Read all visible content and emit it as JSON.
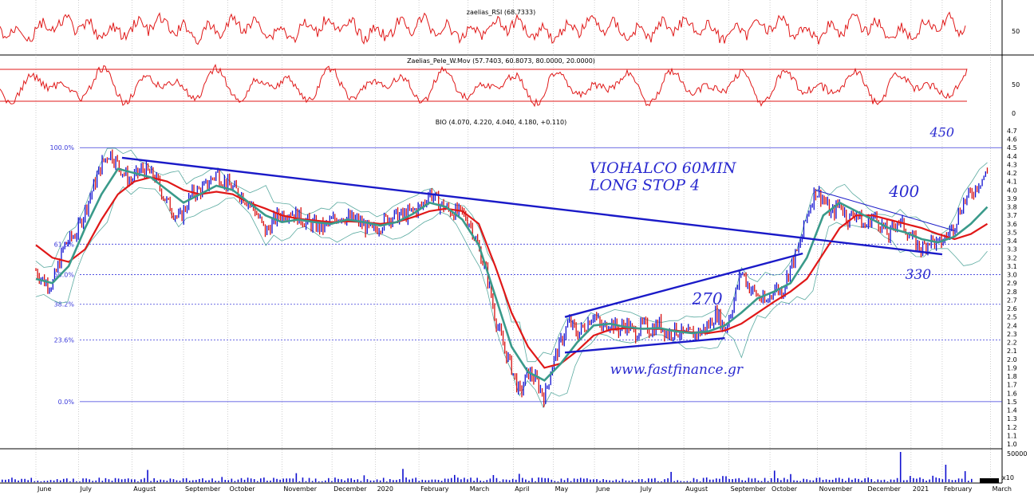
{
  "chart_data": {
    "type": "line",
    "ticker": "BIO",
    "price_header": "BIO (4.070, 4.220, 4.040, 4.180, +0.110)",
    "y_axis": {
      "min": 1.0,
      "max": 4.7,
      "ticks": [
        "4.7",
        "4.6",
        "4.5",
        "4.4",
        "4.3",
        "4.2",
        "4.1",
        "4.0",
        "3.9",
        "3.8",
        "3.7",
        "3.6",
        "3.5",
        "3.4",
        "3.3",
        "3.2",
        "3.1",
        "3.0",
        "2.9",
        "2.8",
        "2.7",
        "2.6",
        "2.5",
        "2.4",
        "2.3",
        "2.2",
        "2.1",
        "2.0",
        "1.9",
        "1.8",
        "1.7",
        "1.6",
        "1.5",
        "1.4",
        "1.3",
        "1.2",
        "1.1",
        "1.0"
      ]
    },
    "x_axis": {
      "labels": [
        "June",
        "July",
        "August",
        "September",
        "October",
        "November",
        "December",
        "2020",
        "February",
        "March",
        "April",
        "May",
        "June",
        "July",
        "August",
        "September",
        "October",
        "November",
        "December",
        "2021",
        "February",
        "March"
      ],
      "label_pos": [
        0.0,
        0.052,
        0.117,
        0.18,
        0.234,
        0.3,
        0.361,
        0.414,
        0.467,
        0.527,
        0.582,
        0.631,
        0.681,
        0.735,
        0.79,
        0.845,
        0.895,
        0.953,
        1.012,
        1.067,
        1.105,
        1.164
      ]
    },
    "fib_levels": [
      {
        "label": "100.0%",
        "value": 4.5
      },
      {
        "label": "61.8%",
        "value": 3.36
      },
      {
        "label": "50.0%",
        "value": 3.0
      },
      {
        "label": "38.2%",
        "value": 2.65
      },
      {
        "label": "23.6%",
        "value": 2.23
      },
      {
        "label": "0.0%",
        "value": 1.5
      }
    ],
    "price_path": [
      [
        0.0,
        3.05
      ],
      [
        0.01,
        2.92
      ],
      [
        0.02,
        2.88
      ],
      [
        0.035,
        3.35
      ],
      [
        0.05,
        3.5
      ],
      [
        0.065,
        3.9
      ],
      [
        0.08,
        4.3
      ],
      [
        0.09,
        4.45
      ],
      [
        0.1,
        4.3
      ],
      [
        0.115,
        4.1
      ],
      [
        0.13,
        4.25
      ],
      [
        0.145,
        4.15
      ],
      [
        0.16,
        3.85
      ],
      [
        0.175,
        3.65
      ],
      [
        0.19,
        3.95
      ],
      [
        0.205,
        4.02
      ],
      [
        0.22,
        4.2
      ],
      [
        0.235,
        4.05
      ],
      [
        0.25,
        3.95
      ],
      [
        0.265,
        3.8
      ],
      [
        0.28,
        3.5
      ],
      [
        0.295,
        3.7
      ],
      [
        0.31,
        3.75
      ],
      [
        0.33,
        3.62
      ],
      [
        0.35,
        3.55
      ],
      [
        0.37,
        3.7
      ],
      [
        0.39,
        3.65
      ],
      [
        0.41,
        3.5
      ],
      [
        0.43,
        3.68
      ],
      [
        0.45,
        3.7
      ],
      [
        0.47,
        3.8
      ],
      [
        0.48,
        3.98
      ],
      [
        0.49,
        3.85
      ],
      [
        0.505,
        3.75
      ],
      [
        0.52,
        3.72
      ],
      [
        0.53,
        3.6
      ],
      [
        0.54,
        3.3
      ],
      [
        0.55,
        3.0
      ],
      [
        0.56,
        2.5
      ],
      [
        0.57,
        2.15
      ],
      [
        0.58,
        1.9
      ],
      [
        0.59,
        1.58
      ],
      [
        0.6,
        1.85
      ],
      [
        0.61,
        1.75
      ],
      [
        0.62,
        1.55
      ],
      [
        0.63,
        1.95
      ],
      [
        0.64,
        2.2
      ],
      [
        0.65,
        2.45
      ],
      [
        0.66,
        2.3
      ],
      [
        0.67,
        2.4
      ],
      [
        0.68,
        2.55
      ],
      [
        0.69,
        2.35
      ],
      [
        0.7,
        2.45
      ],
      [
        0.71,
        2.35
      ],
      [
        0.72,
        2.42
      ],
      [
        0.73,
        2.3
      ],
      [
        0.74,
        2.4
      ],
      [
        0.75,
        2.35
      ],
      [
        0.76,
        2.42
      ],
      [
        0.77,
        2.3
      ],
      [
        0.78,
        2.35
      ],
      [
        0.79,
        2.28
      ],
      [
        0.8,
        2.3
      ],
      [
        0.81,
        2.32
      ],
      [
        0.82,
        2.4
      ],
      [
        0.83,
        2.55
      ],
      [
        0.84,
        2.35
      ],
      [
        0.85,
        2.65
      ],
      [
        0.86,
        3.05
      ],
      [
        0.87,
        2.85
      ],
      [
        0.88,
        2.75
      ],
      [
        0.89,
        2.65
      ],
      [
        0.9,
        2.85
      ],
      [
        0.91,
        2.8
      ],
      [
        0.92,
        3.1
      ],
      [
        0.93,
        3.3
      ],
      [
        0.94,
        3.7
      ],
      [
        0.95,
        4.0
      ],
      [
        0.96,
        3.9
      ],
      [
        0.97,
        3.7
      ],
      [
        0.98,
        3.85
      ],
      [
        0.99,
        3.65
      ],
      [
        1.0,
        3.75
      ],
      [
        1.01,
        3.55
      ],
      [
        1.02,
        3.7
      ],
      [
        1.03,
        3.6
      ],
      [
        1.04,
        3.45
      ],
      [
        1.05,
        3.65
      ],
      [
        1.06,
        3.55
      ],
      [
        1.07,
        3.4
      ],
      [
        1.08,
        3.3
      ],
      [
        1.09,
        3.42
      ],
      [
        1.1,
        3.35
      ],
      [
        1.11,
        3.45
      ],
      [
        1.12,
        3.6
      ],
      [
        1.13,
        3.85
      ],
      [
        1.14,
        3.95
      ],
      [
        1.15,
        4.1
      ],
      [
        1.16,
        4.2
      ]
    ],
    "ma_fast_path": [
      [
        0.0,
        2.95
      ],
      [
        0.02,
        2.9
      ],
      [
        0.04,
        3.1
      ],
      [
        0.06,
        3.55
      ],
      [
        0.08,
        3.95
      ],
      [
        0.1,
        4.25
      ],
      [
        0.12,
        4.2
      ],
      [
        0.14,
        4.15
      ],
      [
        0.16,
        4.0
      ],
      [
        0.18,
        3.85
      ],
      [
        0.2,
        3.95
      ],
      [
        0.22,
        4.05
      ],
      [
        0.24,
        4.0
      ],
      [
        0.26,
        3.85
      ],
      [
        0.28,
        3.7
      ],
      [
        0.3,
        3.62
      ],
      [
        0.32,
        3.65
      ],
      [
        0.34,
        3.62
      ],
      [
        0.36,
        3.6
      ],
      [
        0.38,
        3.65
      ],
      [
        0.4,
        3.62
      ],
      [
        0.42,
        3.58
      ],
      [
        0.44,
        3.62
      ],
      [
        0.46,
        3.72
      ],
      [
        0.48,
        3.85
      ],
      [
        0.5,
        3.8
      ],
      [
        0.52,
        3.65
      ],
      [
        0.54,
        3.35
      ],
      [
        0.56,
        2.75
      ],
      [
        0.58,
        2.15
      ],
      [
        0.6,
        1.85
      ],
      [
        0.62,
        1.75
      ],
      [
        0.64,
        1.95
      ],
      [
        0.66,
        2.2
      ],
      [
        0.68,
        2.4
      ],
      [
        0.7,
        2.42
      ],
      [
        0.72,
        2.38
      ],
      [
        0.74,
        2.36
      ],
      [
        0.76,
        2.37
      ],
      [
        0.78,
        2.33
      ],
      [
        0.8,
        2.31
      ],
      [
        0.82,
        2.33
      ],
      [
        0.84,
        2.4
      ],
      [
        0.86,
        2.55
      ],
      [
        0.88,
        2.72
      ],
      [
        0.9,
        2.8
      ],
      [
        0.92,
        2.9
      ],
      [
        0.94,
        3.2
      ],
      [
        0.96,
        3.7
      ],
      [
        0.98,
        3.85
      ],
      [
        1.0,
        3.75
      ],
      [
        1.02,
        3.65
      ],
      [
        1.04,
        3.55
      ],
      [
        1.06,
        3.5
      ],
      [
        1.08,
        3.42
      ],
      [
        1.1,
        3.38
      ],
      [
        1.12,
        3.45
      ],
      [
        1.14,
        3.6
      ],
      [
        1.16,
        3.8
      ]
    ],
    "ma_slow_path": [
      [
        0.0,
        3.35
      ],
      [
        0.02,
        3.2
      ],
      [
        0.04,
        3.15
      ],
      [
        0.06,
        3.3
      ],
      [
        0.08,
        3.65
      ],
      [
        0.1,
        3.95
      ],
      [
        0.12,
        4.1
      ],
      [
        0.14,
        4.15
      ],
      [
        0.16,
        4.1
      ],
      [
        0.18,
        4.0
      ],
      [
        0.2,
        3.95
      ],
      [
        0.22,
        3.98
      ],
      [
        0.24,
        3.95
      ],
      [
        0.26,
        3.85
      ],
      [
        0.28,
        3.78
      ],
      [
        0.3,
        3.7
      ],
      [
        0.32,
        3.66
      ],
      [
        0.34,
        3.64
      ],
      [
        0.36,
        3.62
      ],
      [
        0.38,
        3.63
      ],
      [
        0.4,
        3.62
      ],
      [
        0.42,
        3.6
      ],
      [
        0.44,
        3.62
      ],
      [
        0.46,
        3.68
      ],
      [
        0.48,
        3.75
      ],
      [
        0.5,
        3.78
      ],
      [
        0.52,
        3.75
      ],
      [
        0.54,
        3.6
      ],
      [
        0.56,
        3.1
      ],
      [
        0.58,
        2.55
      ],
      [
        0.6,
        2.15
      ],
      [
        0.62,
        1.9
      ],
      [
        0.64,
        1.95
      ],
      [
        0.66,
        2.1
      ],
      [
        0.68,
        2.28
      ],
      [
        0.7,
        2.35
      ],
      [
        0.72,
        2.37
      ],
      [
        0.74,
        2.36
      ],
      [
        0.76,
        2.36
      ],
      [
        0.78,
        2.34
      ],
      [
        0.8,
        2.32
      ],
      [
        0.82,
        2.31
      ],
      [
        0.84,
        2.34
      ],
      [
        0.86,
        2.42
      ],
      [
        0.88,
        2.55
      ],
      [
        0.9,
        2.68
      ],
      [
        0.92,
        2.8
      ],
      [
        0.94,
        2.95
      ],
      [
        0.96,
        3.25
      ],
      [
        0.98,
        3.55
      ],
      [
        1.0,
        3.7
      ],
      [
        1.02,
        3.7
      ],
      [
        1.04,
        3.65
      ],
      [
        1.06,
        3.6
      ],
      [
        1.08,
        3.55
      ],
      [
        1.1,
        3.48
      ],
      [
        1.12,
        3.42
      ],
      [
        1.14,
        3.48
      ],
      [
        1.16,
        3.6
      ]
    ],
    "trendlines": [
      {
        "from": [
          0.105,
          4.38
        ],
        "to": [
          1.105,
          3.24
        ]
      },
      {
        "from": [
          0.645,
          2.5
        ],
        "to": [
          0.935,
          3.25
        ]
      },
      {
        "from": [
          0.645,
          2.08
        ],
        "to": [
          0.84,
          2.25
        ]
      },
      {
        "from": [
          0.95,
          4.0
        ],
        "to": [
          1.12,
          3.52
        ]
      }
    ],
    "annotations": [
      {
        "text": "VIOHALCO 60MIN",
        "at": [
          0.675,
          4.2
        ]
      },
      {
        "text": "LONG STOP 4",
        "at": [
          0.675,
          4.0
        ]
      },
      {
        "text": "www.fastfinance.gr",
        "at": [
          0.7,
          1.83
        ]
      },
      {
        "text": "450",
        "at": [
          1.09,
          4.63
        ]
      },
      {
        "text": "400",
        "at": [
          1.04,
          3.92
        ]
      },
      {
        "text": "330",
        "at": [
          1.06,
          2.95
        ]
      },
      {
        "text": "270",
        "at": [
          0.8,
          2.65
        ]
      }
    ],
    "rsi_panel": {
      "title": "zaelias_RSI (68.7333)",
      "ticks": [
        "50"
      ]
    },
    "stoch_panel": {
      "title": "Zaelias_Pele_W.Mov (57.7403, 60.8073, 80.0000, 20.0000)",
      "ticks": [
        "50",
        "0"
      ],
      "levels": [
        80,
        20
      ]
    },
    "volume_panel": {
      "ticks": [
        "50000"
      ],
      "scale_label": "x10"
    },
    "colors": {
      "price_up": "#1010d0",
      "price_down": "#d81010",
      "ma_fast": "#3a9a8a",
      "ma_slow": "#e01818",
      "band": "#5aaaa0",
      "fib": "#3a3adb",
      "trend": "#1a1ac8",
      "indicator": "#e01818",
      "grid": "#b0b0b0"
    }
  }
}
